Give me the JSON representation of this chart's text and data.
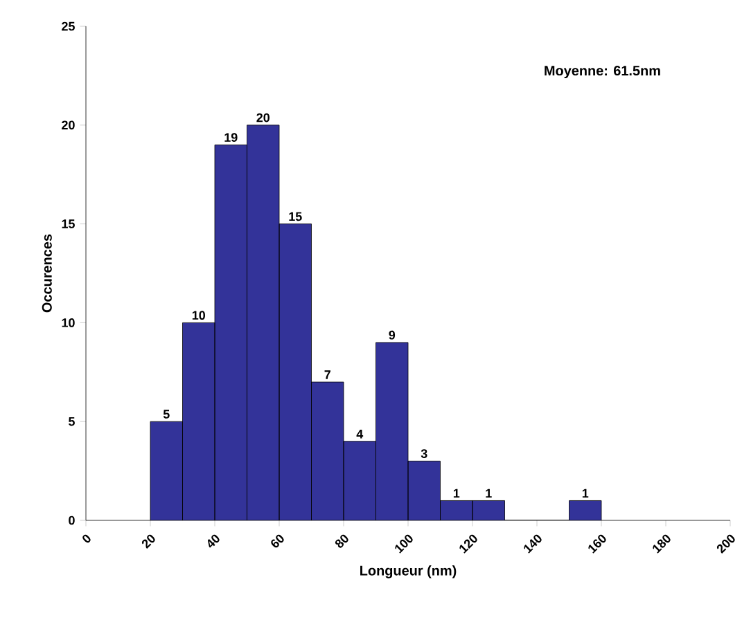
{
  "chart_data": {
    "type": "histogram",
    "xlabel": "Longueur (nm)",
    "ylabel": "Occurences",
    "annotations": [
      "Moyenne: 61.5nm"
    ],
    "bins": [
      20,
      30,
      40,
      50,
      60,
      70,
      80,
      90,
      100,
      110,
      120,
      130,
      140,
      150,
      160
    ],
    "values": [
      5,
      10,
      19,
      20,
      15,
      7,
      4,
      9,
      3,
      1,
      1,
      0,
      0,
      1
    ],
    "value_labels": [
      "5",
      "10",
      "19",
      "20",
      "15",
      "7",
      "4",
      "9",
      "3",
      "1",
      "1",
      null,
      null,
      "1"
    ],
    "color": "#333399",
    "xlim": [
      0,
      200
    ],
    "xticks": [
      0,
      20,
      40,
      60,
      80,
      100,
      120,
      140,
      160,
      180,
      200
    ],
    "ylim": [
      0,
      25
    ],
    "yticks": [
      0,
      5,
      10,
      15,
      20,
      25
    ],
    "grid": false
  }
}
